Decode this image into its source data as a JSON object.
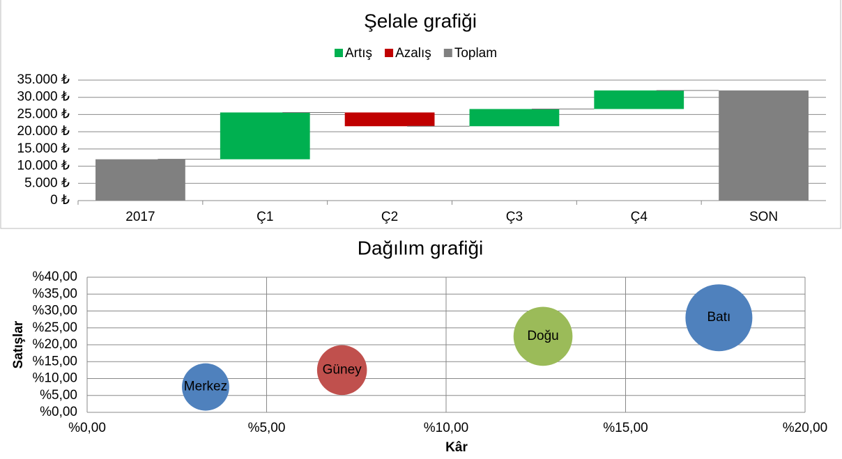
{
  "chart_data": [
    {
      "type": "waterfall",
      "title": "Şelale grafiği",
      "categories": [
        "2017",
        "Ç1",
        "Ç2",
        "Ç3",
        "Ç4",
        "SON"
      ],
      "series": [
        {
          "name": "Artış",
          "color": "#00b050",
          "values": [
            null,
            13600,
            null,
            5000,
            5400,
            null
          ]
        },
        {
          "name": "Azalış",
          "color": "#c00000",
          "values": [
            null,
            null,
            -4000,
            null,
            null,
            null
          ]
        },
        {
          "name": "Toplam",
          "color": "#808080",
          "values": [
            12000,
            null,
            null,
            null,
            null,
            32000
          ]
        }
      ],
      "ylim": [
        0,
        35000
      ],
      "yticks": [
        {
          "value": 0,
          "label": "0 ₺"
        },
        {
          "value": 5000,
          "label": "5.000 ₺"
        },
        {
          "value": 10000,
          "label": "10.000 ₺"
        },
        {
          "value": 15000,
          "label": "15.000 ₺"
        },
        {
          "value": 20000,
          "label": "20.000 ₺"
        },
        {
          "value": 25000,
          "label": "25.000 ₺"
        },
        {
          "value": 30000,
          "label": "30.000 ₺"
        },
        {
          "value": 35000,
          "label": "35.000 ₺"
        }
      ],
      "grid": true,
      "legend": "top"
    },
    {
      "type": "bubble",
      "title": "Dağılım grafiği",
      "xlabel": "Kâr",
      "ylabel": "Satışlar",
      "points": [
        {
          "name": "Merkez",
          "x": 3.3,
          "y": 7.5,
          "size": 4.5,
          "color": "#4f81bd"
        },
        {
          "name": "Güney",
          "x": 7.1,
          "y": 12.5,
          "size": 5,
          "color": "#c0504d"
        },
        {
          "name": "Doğu",
          "x": 12.7,
          "y": 22.5,
          "size": 7,
          "color": "#9bbb59"
        },
        {
          "name": "Batı",
          "x": 17.6,
          "y": 28,
          "size": 9,
          "color": "#4f81bd"
        }
      ],
      "xlim": [
        0,
        20
      ],
      "xticks": [
        {
          "value": 0,
          "label": "%0,00"
        },
        {
          "value": 5,
          "label": "%5,00"
        },
        {
          "value": 10,
          "label": "%10,00"
        },
        {
          "value": 15,
          "label": "%15,00"
        },
        {
          "value": 20,
          "label": "%20,00"
        }
      ],
      "ylim": [
        0,
        40
      ],
      "yticks": [
        {
          "value": 0,
          "label": "%0,00"
        },
        {
          "value": 5,
          "label": "%5,00"
        },
        {
          "value": 10,
          "label": "%10,00"
        },
        {
          "value": 15,
          "label": "%15,00"
        },
        {
          "value": 20,
          "label": "%20,00"
        },
        {
          "value": 25,
          "label": "%25,00"
        },
        {
          "value": 30,
          "label": "%30,00"
        },
        {
          "value": 35,
          "label": "%35,00"
        },
        {
          "value": 40,
          "label": "%40,00"
        }
      ],
      "grid": true
    }
  ]
}
